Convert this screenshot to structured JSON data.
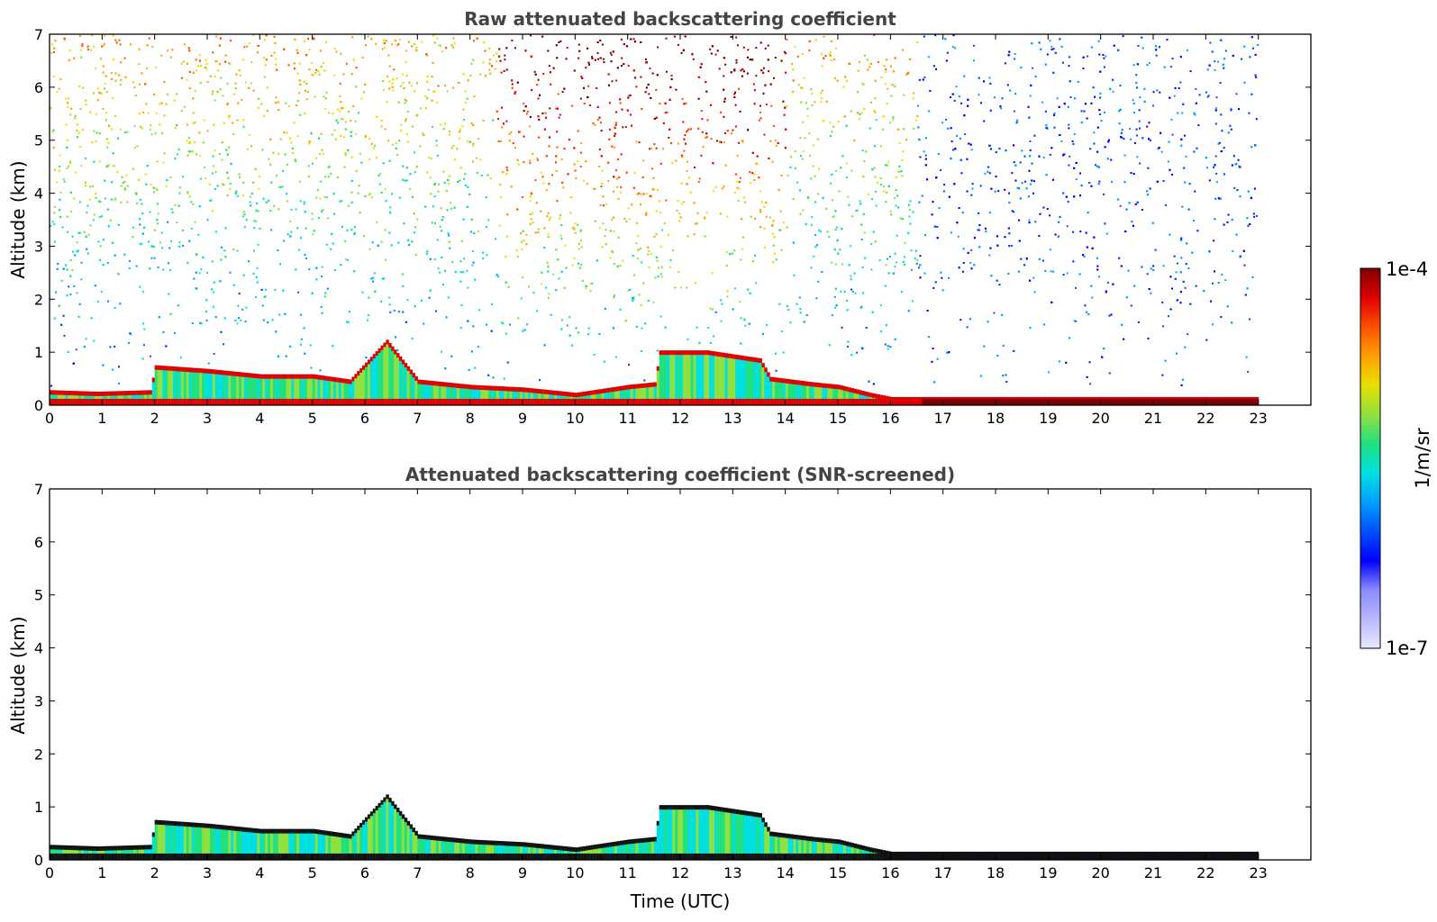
{
  "chart_data": [
    {
      "type": "heatmap",
      "title": "Raw attenuated backscattering coefficient",
      "xlabel": "",
      "ylabel": "Altitude (km)",
      "xlim": [
        0,
        24
      ],
      "ylim": [
        0,
        7
      ],
      "xticks": [
        "0",
        "1",
        "2",
        "3",
        "4",
        "5",
        "6",
        "7",
        "8",
        "9",
        "10",
        "11",
        "12",
        "13",
        "14",
        "15",
        "16",
        "17",
        "18",
        "19",
        "20",
        "21",
        "22",
        "23"
      ],
      "yticks": [
        "0",
        "1",
        "2",
        "3",
        "4",
        "5",
        "6",
        "7"
      ],
      "data_end_time": 23,
      "grid": false,
      "layers": [
        {
          "name": "",
          "kind": "boundary-layer",
          "points": [
            [
              0,
              0.25
            ],
            [
              0.9,
              0.22
            ],
            [
              1.9,
              0.25
            ],
            [
              2.0,
              0.72
            ],
            [
              3.0,
              0.65
            ],
            [
              4.0,
              0.55
            ],
            [
              5.0,
              0.55
            ],
            [
              5.7,
              0.45
            ],
            [
              6.4,
              1.2
            ],
            [
              7.0,
              0.45
            ],
            [
              8.0,
              0.35
            ],
            [
              9.0,
              0.3
            ],
            [
              10.0,
              0.2
            ],
            [
              11.0,
              0.35
            ],
            [
              11.5,
              0.4
            ],
            [
              11.6,
              1.0
            ],
            [
              12.5,
              1.0
            ],
            [
              13.5,
              0.85
            ],
            [
              13.7,
              0.5
            ],
            [
              14.5,
              0.4
            ],
            [
              15.0,
              0.35
            ],
            [
              15.6,
              0.2
            ],
            [
              16.0,
              0.12
            ],
            [
              23.0,
              0.12
            ]
          ]
        },
        {
          "name": "",
          "kind": "aerosol-noise",
          "altitude_range": [
            1.5,
            7
          ],
          "time_range": [
            0,
            23
          ]
        }
      ]
    },
    {
      "type": "heatmap",
      "title": "Attenuated backscattering coefficient (SNR-screened)",
      "xlabel": "Time (UTC)",
      "ylabel": "Altitude (km)",
      "xlim": [
        0,
        24
      ],
      "ylim": [
        0,
        7
      ],
      "xticks": [
        "0",
        "1",
        "2",
        "3",
        "4",
        "5",
        "6",
        "7",
        "8",
        "9",
        "10",
        "11",
        "12",
        "13",
        "14",
        "15",
        "16",
        "17",
        "18",
        "19",
        "20",
        "21",
        "22",
        "23"
      ],
      "yticks": [
        "0",
        "1",
        "2",
        "3",
        "4",
        "5",
        "6",
        "7"
      ],
      "data_end_time": 23,
      "grid": false
    }
  ],
  "colorbar": {
    "label": "1/m/sr",
    "min_label": "1e-7",
    "max_label": "1e-4",
    "colors": [
      "#e8e8ff",
      "#b8b8ff",
      "#8a8aff",
      "#0000ff",
      "#0050ff",
      "#00a0ff",
      "#00e0e0",
      "#20e080",
      "#90e040",
      "#e8e000",
      "#ffa000",
      "#ff5000",
      "#e00000",
      "#800000"
    ]
  }
}
